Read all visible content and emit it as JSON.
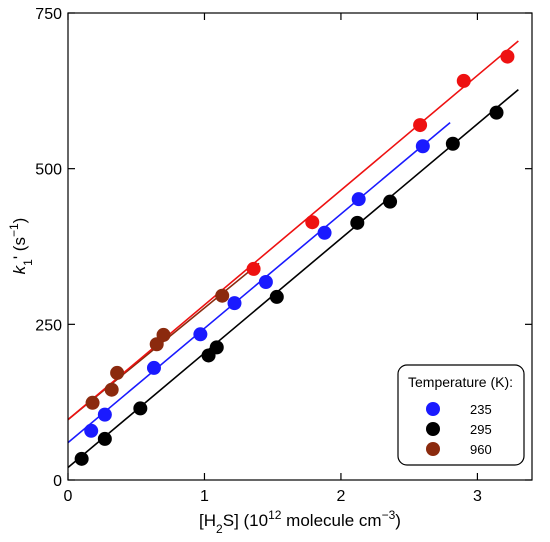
{
  "chart_data": {
    "type": "scatter",
    "xlabel_parts": [
      "[H",
      "2",
      "S] (10",
      "12",
      " molecule cm",
      "−3",
      ")"
    ],
    "ylabel_parts": [
      "k",
      "1",
      "' (s",
      "−1",
      ")"
    ],
    "xlim": [
      0,
      3.4
    ],
    "ylim": [
      0,
      750
    ],
    "x_ticks": [
      0,
      1,
      2,
      3
    ],
    "y_ticks": [
      0,
      250,
      500,
      750
    ],
    "x_tick_labels": [
      "0",
      "1",
      "2",
      "3"
    ],
    "y_tick_labels": [
      "0",
      "250",
      "500",
      "750"
    ],
    "legend": {
      "title": "Temperature (K):",
      "position": "bottom-right",
      "entries": [
        {
          "label": "235",
          "color": "#1a1aff"
        },
        {
          "label": "295",
          "color": "#000000"
        },
        {
          "label": "960",
          "color": "#8b2a0e"
        }
      ]
    },
    "series": [
      {
        "label": "235",
        "color": "#1a1aff",
        "points": [
          {
            "x": 0.17,
            "y": 79
          },
          {
            "x": 0.27,
            "y": 105
          },
          {
            "x": 0.63,
            "y": 180
          },
          {
            "x": 0.97,
            "y": 234
          },
          {
            "x": 1.22,
            "y": 284
          },
          {
            "x": 1.45,
            "y": 318
          },
          {
            "x": 1.88,
            "y": 397
          },
          {
            "x": 2.13,
            "y": 451
          },
          {
            "x": 2.6,
            "y": 536
          }
        ],
        "fit": {
          "x": [
            0,
            2.8
          ],
          "y": [
            60,
            574
          ]
        }
      },
      {
        "label": "295",
        "color": "#000000",
        "points": [
          {
            "x": 0.1,
            "y": 34
          },
          {
            "x": 0.27,
            "y": 66
          },
          {
            "x": 0.53,
            "y": 115
          },
          {
            "x": 1.03,
            "y": 200
          },
          {
            "x": 1.09,
            "y": 213
          },
          {
            "x": 1.53,
            "y": 294
          },
          {
            "x": 2.12,
            "y": 413
          },
          {
            "x": 2.36,
            "y": 447
          },
          {
            "x": 2.82,
            "y": 540
          },
          {
            "x": 3.14,
            "y": 590
          }
        ],
        "fit": {
          "x": [
            0,
            3.3
          ],
          "y": [
            20,
            627
          ]
        }
      },
      {
        "label": "960",
        "color": "#8b2a0e",
        "points": [
          {
            "x": 0.18,
            "y": 124
          },
          {
            "x": 0.32,
            "y": 145
          },
          {
            "x": 0.36,
            "y": 172
          },
          {
            "x": 0.65,
            "y": 218
          },
          {
            "x": 0.7,
            "y": 233
          },
          {
            "x": 1.13,
            "y": 296
          }
        ],
        "fit": {
          "x": [
            0,
            1.4
          ],
          "y": [
            97,
            348
          ]
        }
      },
      {
        "label": "",
        "color": "#ee1111",
        "points": [
          {
            "x": 1.36,
            "y": 339
          },
          {
            "x": 1.79,
            "y": 414
          },
          {
            "x": 2.58,
            "y": 570
          },
          {
            "x": 2.9,
            "y": 641
          },
          {
            "x": 3.22,
            "y": 680
          }
        ],
        "fit": {
          "x": [
            0,
            3.3
          ],
          "y": [
            97,
            705
          ]
        }
      }
    ]
  }
}
